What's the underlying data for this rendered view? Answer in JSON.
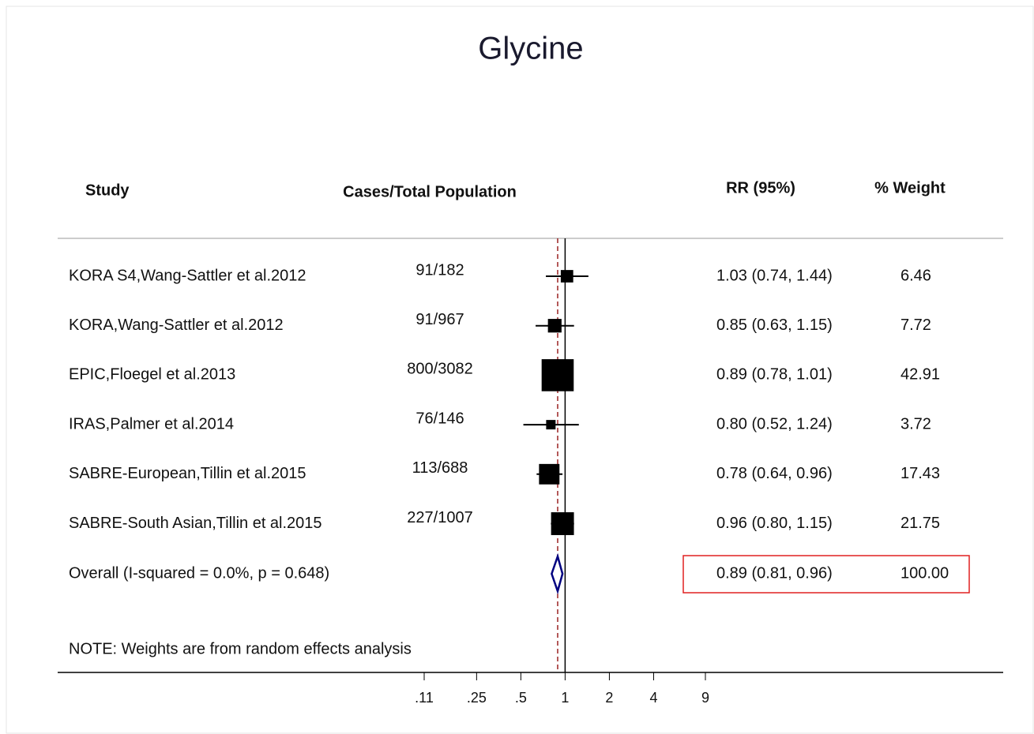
{
  "chart_data": {
    "type": "forest",
    "title": "Glycine",
    "headers": {
      "study": "Study",
      "cases": "Cases/Total Population",
      "rr": "RR (95%)",
      "weight": "% Weight"
    },
    "studies": [
      {
        "name": "KORA S4,Wang-Sattler et al.2012",
        "cases": "91/182",
        "rr": 1.03,
        "lower": 0.74,
        "upper": 1.44,
        "rr_label": "1.03 (0.74, 1.44)",
        "weight": 6.46
      },
      {
        "name": "KORA,Wang-Sattler et al.2012",
        "cases": "91/967",
        "rr": 0.85,
        "lower": 0.63,
        "upper": 1.15,
        "rr_label": "0.85 (0.63, 1.15)",
        "weight": 7.72
      },
      {
        "name": "EPIC,Floegel et al.2013",
        "cases": "800/3082",
        "rr": 0.89,
        "lower": 0.78,
        "upper": 1.01,
        "rr_label": "0.89 (0.78, 1.01)",
        "weight": 42.91
      },
      {
        "name": "IRAS,Palmer et al.2014",
        "cases": "76/146",
        "rr": 0.8,
        "lower": 0.52,
        "upper": 1.24,
        "rr_label": "0.80 (0.52, 1.24)",
        "weight": 3.72
      },
      {
        "name": "SABRE-European,Tillin et al.2015",
        "cases": "113/688",
        "rr": 0.78,
        "lower": 0.64,
        "upper": 0.96,
        "rr_label": "0.78 (0.64, 0.96)",
        "weight": 17.43
      },
      {
        "name": "SABRE-South Asian,Tillin et al.2015",
        "cases": "227/1007",
        "rr": 0.96,
        "lower": 0.8,
        "upper": 1.15,
        "rr_label": "0.96 (0.80, 1.15)",
        "weight": 21.75
      }
    ],
    "overall": {
      "name": "Overall  (I-squared = 0.0%, p = 0.648)",
      "rr": 0.89,
      "lower": 0.81,
      "upper": 0.96,
      "rr_label": "0.89 (0.81, 0.96)",
      "weight": "100.00"
    },
    "note": "NOTE: Weights are from random effects analysis",
    "log_x": true,
    "xlim": [
      0.11,
      9
    ],
    "xticks": [
      {
        "value": 0.11,
        "label": ".11"
      },
      {
        "value": 0.25,
        "label": ".25"
      },
      {
        "value": 0.5,
        "label": ".5"
      },
      1,
      2,
      4,
      9
    ],
    "box_color": "#000000",
    "diamond_color": "#000080",
    "overall_line_color": "#8b0000"
  }
}
